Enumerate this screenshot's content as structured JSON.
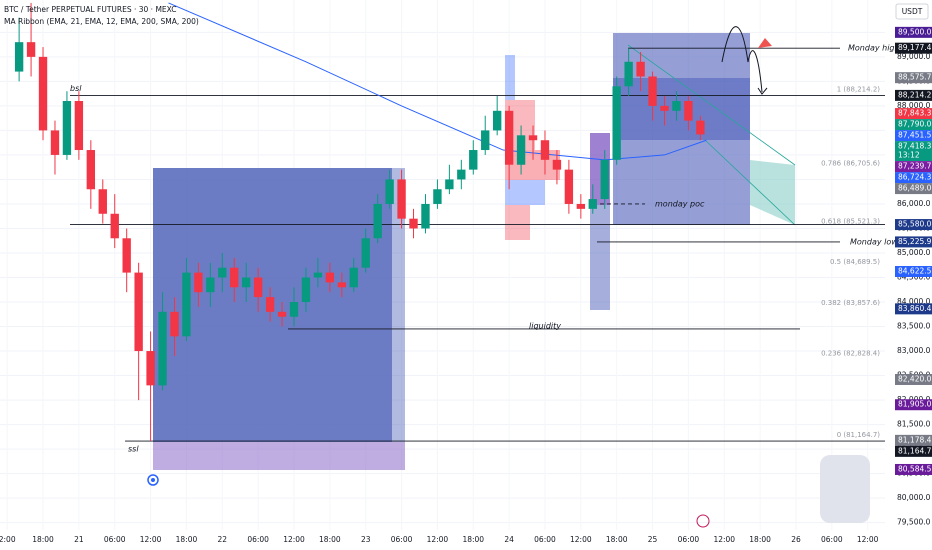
{
  "chart_data": {
    "type": "candlestick",
    "title": "BTC / Tether PERPETUAL FUTURES · 30 · MEXC",
    "subtitle": "MA Ribbon (EMA, 21, EMA, 12, EMA, 200, SMA, 200)",
    "currency": "USDT",
    "grid": true,
    "ylim": [
      79350,
      90160
    ],
    "yticks": [
      {
        "value": 79500,
        "label": "79,500.0"
      },
      {
        "value": 80000,
        "label": "80,000.0"
      },
      {
        "value": 80500,
        "label": "80,500.0"
      },
      {
        "value": 81000,
        "label": "81,000.0"
      },
      {
        "value": 81500,
        "label": "81,500.0"
      },
      {
        "value": 82000,
        "label": "82,000.0"
      },
      {
        "value": 82500,
        "label": "82,500.0"
      },
      {
        "value": 83000,
        "label": "83,000.0"
      },
      {
        "value": 83500,
        "label": "83,500.0"
      },
      {
        "value": 84000,
        "label": "84,000.0"
      },
      {
        "value": 84500,
        "label": "84,500.0"
      },
      {
        "value": 85000,
        "label": "85,000.0"
      },
      {
        "value": 85500,
        "label": "85,500.0"
      },
      {
        "value": 86000,
        "label": "86,000.0"
      },
      {
        "value": 86500,
        "label": "86,500.0"
      },
      {
        "value": 87000,
        "label": "87,000.0"
      },
      {
        "value": 87500,
        "label": "87,500.0"
      },
      {
        "value": 88000,
        "label": "88,000.0"
      },
      {
        "value": 88500,
        "label": "88,500.0"
      },
      {
        "value": 89000,
        "label": "89,000.0"
      },
      {
        "value": 89500,
        "label": "89,500.0"
      }
    ],
    "xlim": [
      -1.2,
      146.9
    ],
    "xticks": [
      {
        "value": 0,
        "label": "2:00"
      },
      {
        "value": 6,
        "label": "18:00"
      },
      {
        "value": 12,
        "label": "21"
      },
      {
        "value": 18,
        "label": "06:00"
      },
      {
        "value": 24,
        "label": "12:00"
      },
      {
        "value": 30,
        "label": "18:00"
      },
      {
        "value": 36,
        "label": "22"
      },
      {
        "value": 42,
        "label": "06:00"
      },
      {
        "value": 48,
        "label": "12:00"
      },
      {
        "value": 54,
        "label": "18:00"
      },
      {
        "value": 60,
        "label": "23"
      },
      {
        "value": 66,
        "label": "06:00"
      },
      {
        "value": 72,
        "label": "12:00"
      },
      {
        "value": 78,
        "label": "18:00"
      },
      {
        "value": 84,
        "label": "24"
      },
      {
        "value": 90,
        "label": "06:00"
      },
      {
        "value": 96,
        "label": "12:00"
      },
      {
        "value": 102,
        "label": "18:00"
      },
      {
        "value": 108,
        "label": "25"
      },
      {
        "value": 114,
        "label": "06:00"
      },
      {
        "value": 120,
        "label": "12:00"
      },
      {
        "value": 126,
        "label": "18:00"
      },
      {
        "value": 132,
        "label": "26"
      },
      {
        "value": 138,
        "label": "06:00"
      },
      {
        "value": 144,
        "label": "12:00"
      }
    ],
    "candles": {
      "x": [
        2,
        4,
        6,
        8,
        10,
        12,
        14,
        16,
        18,
        20,
        22,
        24,
        26,
        28,
        30,
        32,
        34,
        36,
        38,
        40,
        42,
        44,
        46,
        48,
        50,
        52,
        54,
        56,
        58,
        60,
        62,
        64,
        66,
        68,
        70,
        72,
        74,
        76,
        78,
        80,
        82,
        84,
        86,
        88,
        90,
        92,
        94,
        96,
        98,
        100,
        102,
        104,
        106,
        108,
        110,
        112,
        114,
        116
      ],
      "open": [
        88700,
        89300,
        89000,
        87500,
        87000,
        88100,
        87100,
        86300,
        85800,
        85300,
        84600,
        83000,
        82300,
        83800,
        83300,
        84600,
        84200,
        84500,
        84700,
        84300,
        84500,
        84100,
        83800,
        83700,
        84000,
        84500,
        84600,
        84400,
        84300,
        84700,
        85300,
        86000,
        86500,
        85700,
        85500,
        86000,
        86300,
        86500,
        86700,
        87100,
        87500,
        87900,
        86800,
        87400,
        87300,
        86900,
        86700,
        86000,
        85900,
        86100,
        86900,
        88400,
        88900,
        88600,
        88000,
        87900,
        88100,
        87700
      ],
      "high": [
        89800,
        90100,
        89200,
        87700,
        88300,
        88300,
        87300,
        86500,
        86200,
        85500,
        84800,
        83400,
        84200,
        84100,
        84900,
        84800,
        84800,
        85000,
        84900,
        84800,
        84700,
        84300,
        84000,
        84300,
        84700,
        84900,
        84800,
        84600,
        84900,
        85500,
        86200,
        86700,
        86700,
        85900,
        86200,
        86500,
        86800,
        86900,
        87300,
        87800,
        88200,
        88000,
        87600,
        87600,
        87500,
        87100,
        86900,
        86200,
        86400,
        87100,
        88600,
        89177,
        89100,
        88700,
        88200,
        88300,
        88200,
        87800
      ],
      "low": [
        88500,
        88600,
        87300,
        86600,
        86900,
        86900,
        85900,
        85600,
        85100,
        84200,
        82000,
        81165,
        82200,
        82900,
        83200,
        83900,
        83900,
        84200,
        84000,
        84000,
        83800,
        83600,
        83500,
        83500,
        83800,
        84300,
        84200,
        84100,
        84200,
        84600,
        85200,
        85900,
        85500,
        85300,
        85400,
        85900,
        86200,
        86300,
        86600,
        87000,
        87400,
        86300,
        86600,
        86900,
        86600,
        86400,
        85800,
        85700,
        85800,
        85900,
        86800,
        88200,
        88300,
        87700,
        87600,
        87700,
        87500,
        87300
      ],
      "close": [
        89300,
        89000,
        87500,
        87000,
        88100,
        87100,
        86300,
        85800,
        85300,
        84600,
        83000,
        82300,
        83800,
        83300,
        84600,
        84200,
        84500,
        84700,
        84300,
        84500,
        84100,
        83800,
        83700,
        84000,
        84500,
        84600,
        84400,
        84300,
        84700,
        85300,
        86000,
        86500,
        85700,
        85500,
        86000,
        86300,
        86500,
        86700,
        87100,
        87500,
        87900,
        86800,
        87400,
        87300,
        86900,
        86700,
        86000,
        85900,
        86100,
        86900,
        88400,
        88900,
        88600,
        88000,
        87900,
        88100,
        87700,
        87418.3
      ],
      "up_color": "#089981",
      "down_color": "#f23645"
    },
    "ma_line": {
      "color": "#2962ff",
      "x": [
        27,
        50,
        66,
        83,
        100,
        110,
        117
      ],
      "values": [
        90100,
        88900,
        88000,
        87100,
        86900,
        87000,
        87300
      ]
    },
    "levels": [
      {
        "price": 88214.2,
        "text": "bsl"
      },
      {
        "price": 85580
      },
      {
        "price": 81164.7,
        "text": "ssl"
      },
      {
        "price": 89177.4,
        "text": "Monday high"
      },
      {
        "price": 85225.9,
        "text": "Monday low"
      },
      {
        "price": 83450,
        "text": "liquidity"
      },
      {
        "price": 86000,
        "text": "monday poc"
      }
    ],
    "fib": [
      {
        "value": 88214.2,
        "label": "1 (88,214.2)"
      },
      {
        "value": 86705.6,
        "label": "0.786 (86,705.6)"
      },
      {
        "value": 85521.3,
        "label": "0.618 (85,521.3)"
      },
      {
        "value": 84689.5,
        "label": "0.5 (84,689.5)"
      },
      {
        "value": 83857.6,
        "label": "0.382 (83,857.6)"
      },
      {
        "value": 82828.4,
        "label": "0.236 (82,828.4)"
      },
      {
        "value": 81164.7,
        "label": "0 (81,164.7)"
      }
    ],
    "price_tags": [
      {
        "value": 89500,
        "label": "89,500.0",
        "color": "#4a1d96"
      },
      {
        "value": 89177.4,
        "label": "89,177.4",
        "color": "#131722"
      },
      {
        "value": 88575.7,
        "label": "88,575.7",
        "color": "#787b86"
      },
      {
        "value": 88214.2,
        "label": "88,214.2",
        "color": "#131722"
      },
      {
        "value": 87843.3,
        "label": "87,843.3",
        "color": "#f23645"
      },
      {
        "value": 87790,
        "label": "87,790.0",
        "color": "#089981"
      },
      {
        "value": 87451.5,
        "label": "87,451.5",
        "color": "#2962ff"
      },
      {
        "value": 87418.3,
        "label": "87,418.3",
        "color": "#089981",
        "sub": "13:12"
      },
      {
        "value": 87239.7,
        "label": "87,239.7",
        "color": "#7b1fa2"
      },
      {
        "value": 86724.3,
        "label": "86,724.3",
        "color": "#2962ff"
      },
      {
        "value": 86489,
        "label": "86,489.0",
        "color": "#787b86"
      },
      {
        "value": 85580,
        "label": "85,580.0",
        "color": "#1e3a8a"
      },
      {
        "value": 85225.9,
        "label": "85,225.9",
        "color": "#1e3a8a"
      },
      {
        "value": 84622.5,
        "label": "84,622.5",
        "color": "#2962ff"
      },
      {
        "value": 83860.4,
        "label": "83,860.4",
        "color": "#1e3a8a"
      },
      {
        "value": 82420,
        "label": "82,420.0",
        "color": "#787b86"
      },
      {
        "value": 81905,
        "label": "81,905.0",
        "color": "#6a1b9a"
      },
      {
        "value": 81178.4,
        "label": "81,178.4",
        "color": "#787b86"
      },
      {
        "value": 81164.7,
        "label": "81,164.7",
        "color": "#131722"
      },
      {
        "value": 80584.5,
        "label": "80,584.5",
        "color": "#6a1b9a"
      }
    ]
  }
}
